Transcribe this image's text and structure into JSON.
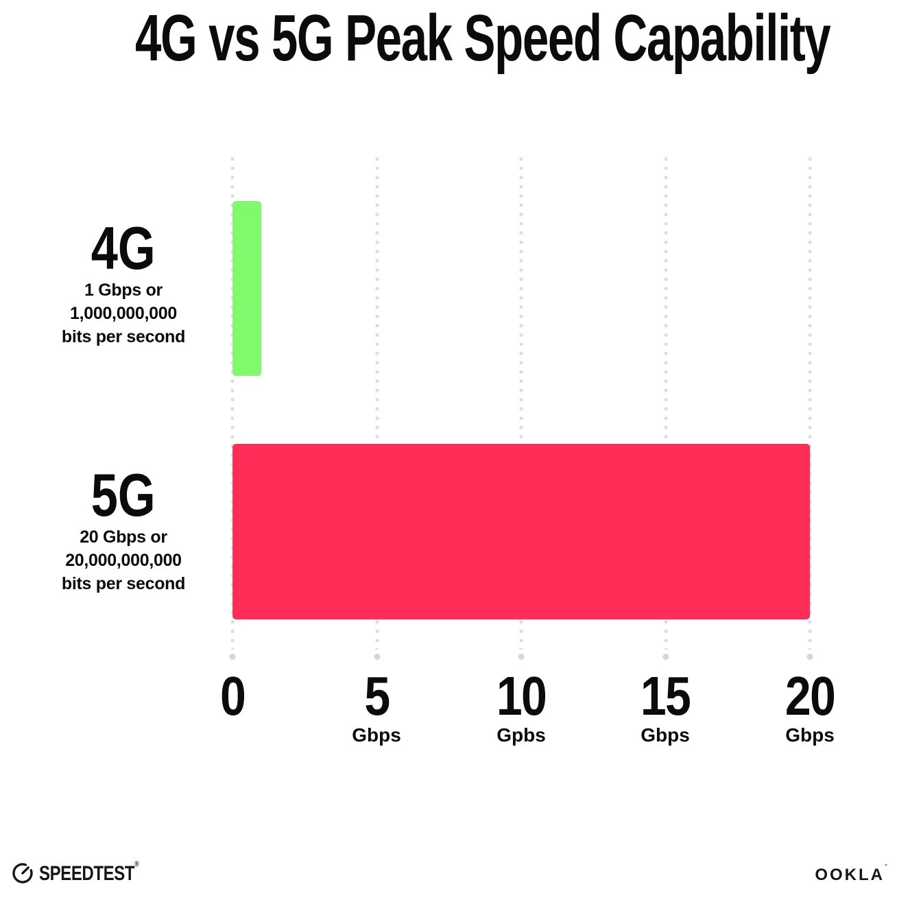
{
  "chart_data": {
    "type": "bar",
    "orientation": "horizontal",
    "title": "4G vs 5G Peak Speed Capability",
    "categories": [
      "4G",
      "5G"
    ],
    "values": [
      1,
      20
    ],
    "xlim": [
      0,
      20
    ],
    "grid": "vertical-dotted",
    "grid_color": "#dcdce9",
    "rows": [
      {
        "name": "4G",
        "value": 1,
        "color": "#80f96d",
        "sub1": "1 Gbps or",
        "sub2": "1,000,000,000",
        "sub3": "bits per second"
      },
      {
        "name": "5G",
        "value": 20,
        "color": "#ff2d58",
        "sub1": "20 Gbps or",
        "sub2": "20,000,000,000",
        "sub3": "bits per second"
      }
    ],
    "x_ticks": [
      {
        "label": "0",
        "unit": ""
      },
      {
        "label": "5",
        "unit": "Gbps"
      },
      {
        "label": "10",
        "unit": "Gpbs"
      },
      {
        "label": "15",
        "unit": "Gbps"
      },
      {
        "label": "20",
        "unit": "Gbps"
      }
    ]
  },
  "footer": {
    "speedtest_label": "SPEEDTEST",
    "speedtest_mark": "®",
    "ookla_label": "OOKLA",
    "ookla_mark": "´"
  }
}
